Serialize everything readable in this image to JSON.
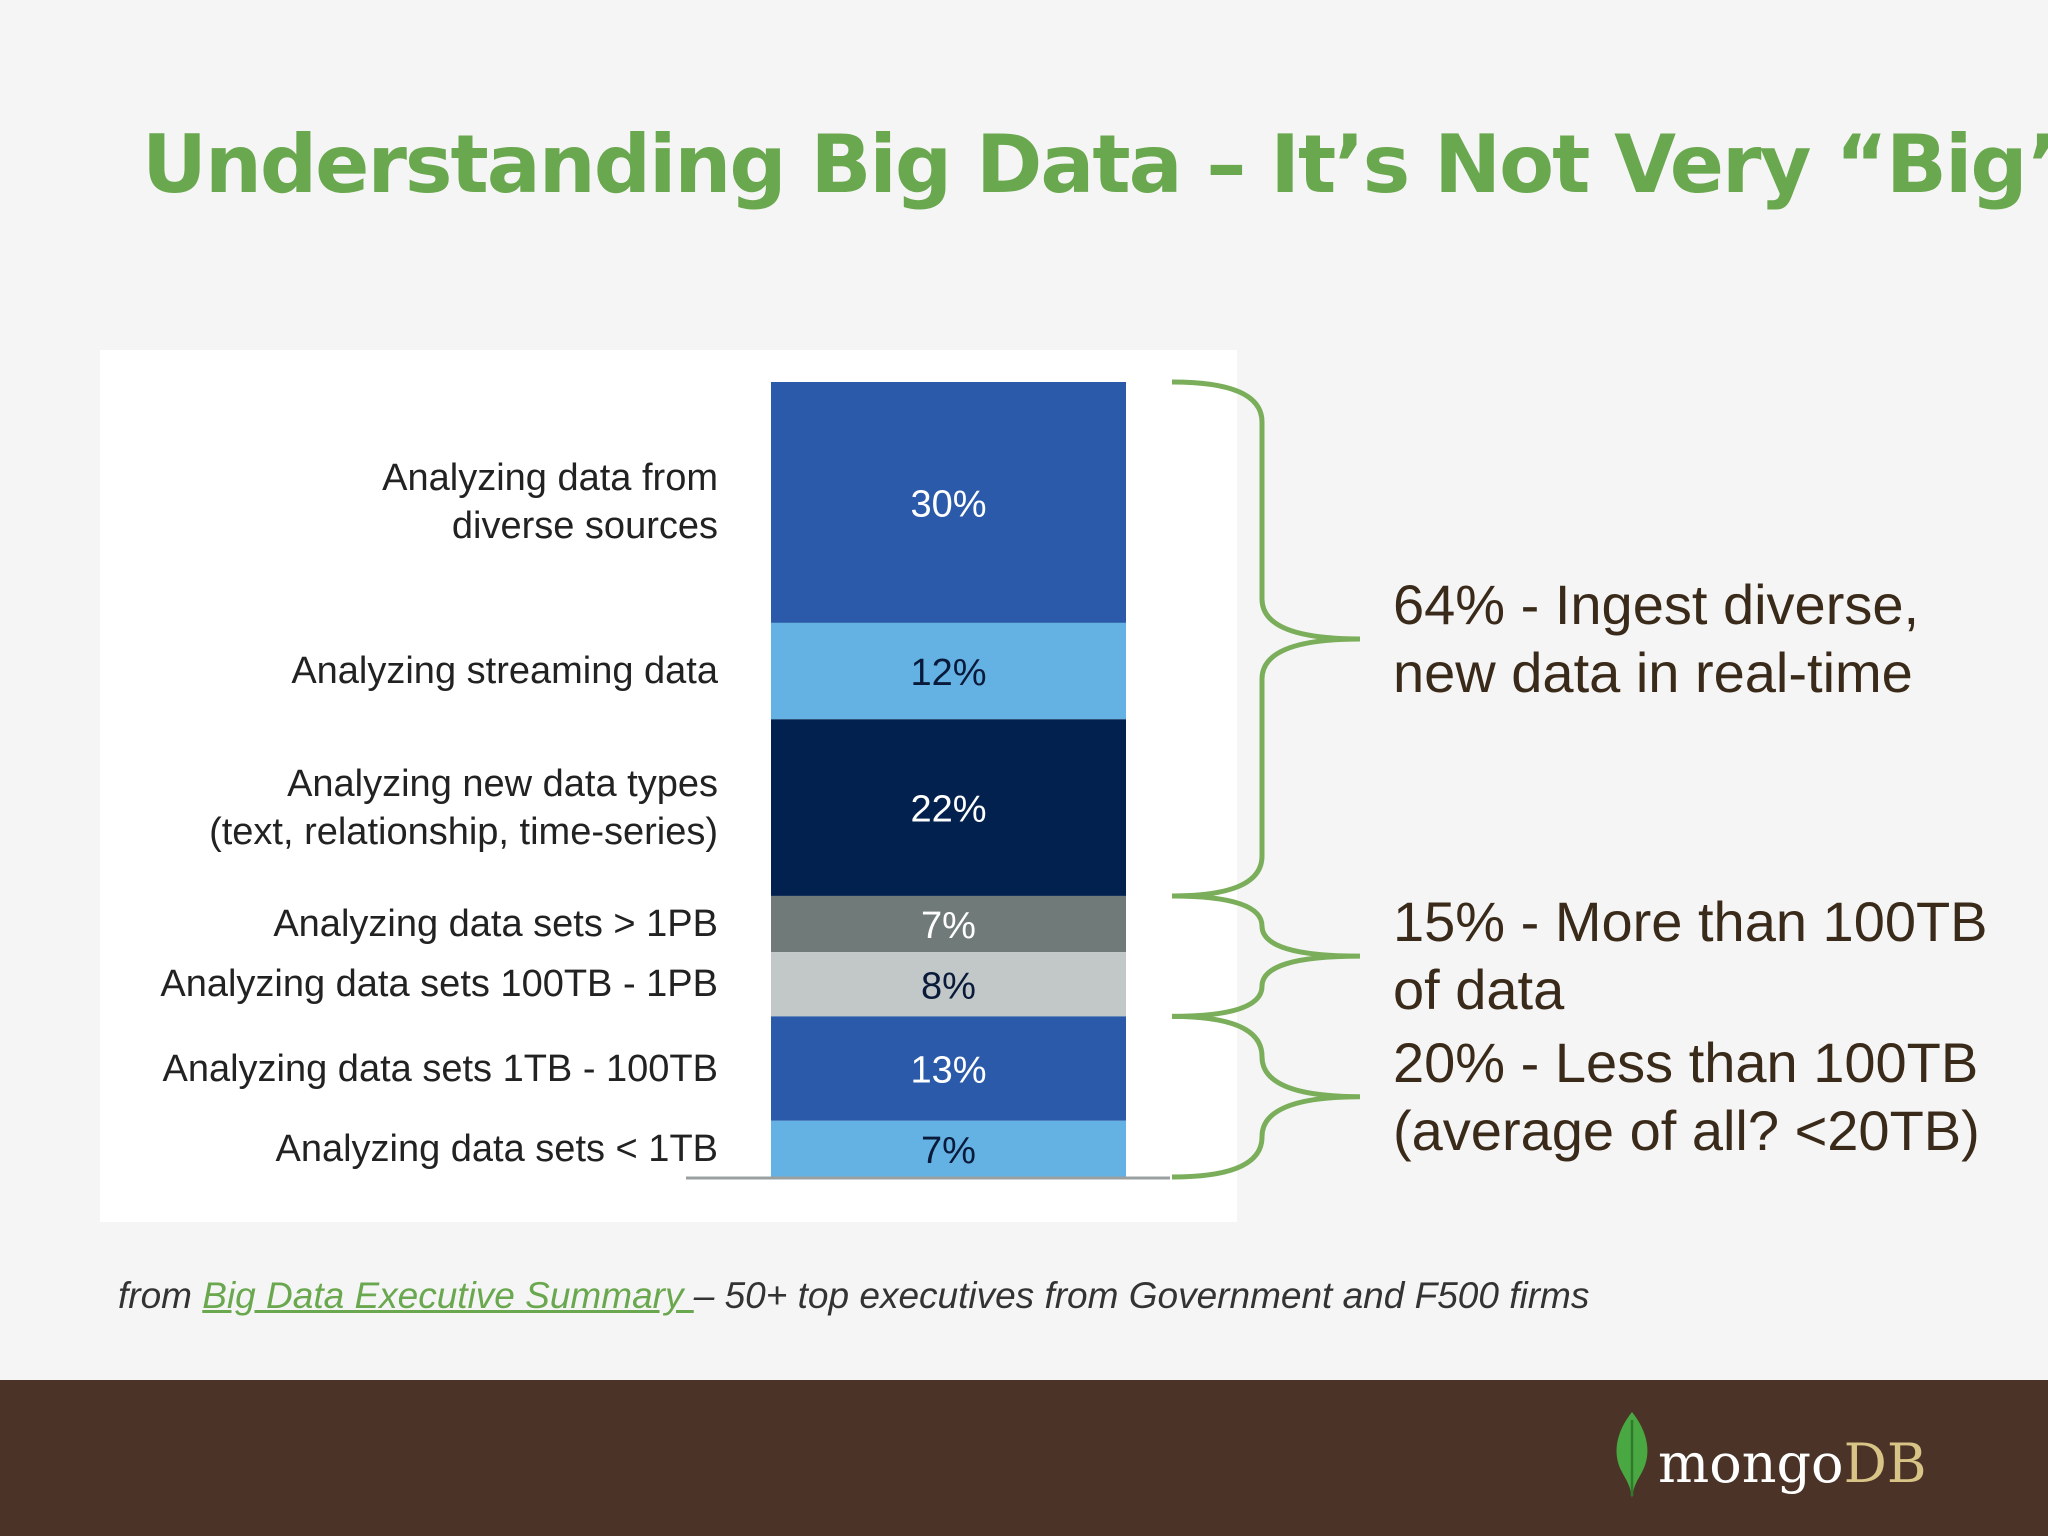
{
  "slide": {
    "title": "Understanding Big Data – It’s Not Very “Big”",
    "source_prefix": "from ",
    "source_link": "Big Data Executive Summary ",
    "source_suffix": "– 50+ top executives from Government and F500 firms"
  },
  "chart_data": {
    "type": "bar",
    "stacked": true,
    "orientation": "vertical",
    "categories": [
      "Analyzing data from\ndiverse sources",
      "Analyzing streaming data",
      "Analyzing new data types\n(text, relationship, time-series)",
      "Analyzing data sets > 1PB",
      "Analyzing data sets 100TB - 1PB",
      "Analyzing data sets 1TB - 100TB",
      "Analyzing data sets < 1TB"
    ],
    "values": [
      30,
      12,
      22,
      7,
      8,
      13,
      7
    ],
    "value_labels": [
      "30%",
      "12%",
      "22%",
      "7%",
      "8%",
      "13%",
      "7%"
    ],
    "segment_colors": [
      "#2a5aa9",
      "#64b2e3",
      "#03214f",
      "#707a79",
      "#c1c8c7",
      "#2a5aa9",
      "#64b2e3"
    ],
    "label_colors": [
      "#ffffff",
      "#0a1a3a",
      "#ffffff",
      "#ffffff",
      "#0a1a3a",
      "#ffffff",
      "#0a1a3a"
    ],
    "title": "",
    "xlabel": "",
    "ylabel": "",
    "legend": "none",
    "grid": false
  },
  "annotations": [
    {
      "text_lines": [
        "64% - Ingest diverse,",
        "new data in real-time"
      ],
      "group_start": 0,
      "group_end": 2
    },
    {
      "text_lines": [
        "15% - More than 100TB",
        "of data"
      ],
      "group_start": 3,
      "group_end": 4
    },
    {
      "text_lines": [
        "20% - Less than 100TB",
        "(average of all? <20TB)"
      ],
      "group_start": 5,
      "group_end": 6
    }
  ],
  "colors": {
    "title_green": "#6aa84f",
    "bracket_green": "#7aae5a",
    "footer_brown": "#4b3427"
  },
  "footer": {
    "logo_text_mongo": "mongo",
    "logo_text_db": "DB",
    "logo_icon": "leaf-icon"
  }
}
